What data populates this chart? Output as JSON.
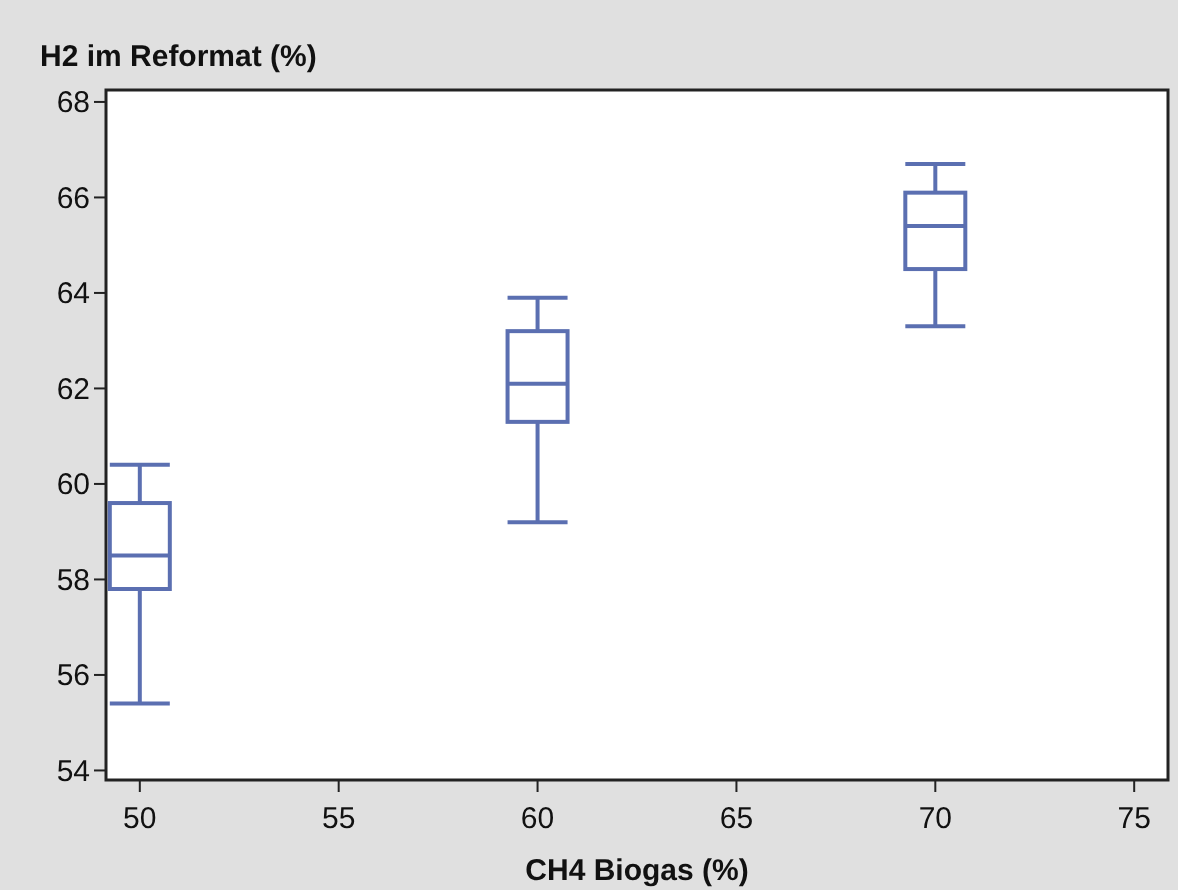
{
  "chart_data": {
    "type": "box",
    "ylabel": "H2 im Reformat (%)",
    "xlabel": "CH4 Biogas (%)",
    "x": [
      50,
      60,
      70
    ],
    "boxes": [
      {
        "low": 55.4,
        "q1": 57.8,
        "median": 58.5,
        "q3": 59.6,
        "high": 60.4
      },
      {
        "low": 59.2,
        "q1": 61.3,
        "median": 62.1,
        "q3": 63.2,
        "high": 63.9
      },
      {
        "low": 63.3,
        "q1": 64.5,
        "median": 65.4,
        "q3": 66.1,
        "high": 66.7
      }
    ],
    "color": "#5b6fb1",
    "xlim": [
      49.15,
      75.85
    ],
    "xticks": [
      50,
      55,
      60,
      65,
      70,
      75
    ],
    "ylim": [
      53.8,
      68.25
    ],
    "yticks": [
      54,
      56,
      58,
      60,
      62,
      64,
      66,
      68
    ],
    "grid": false
  }
}
